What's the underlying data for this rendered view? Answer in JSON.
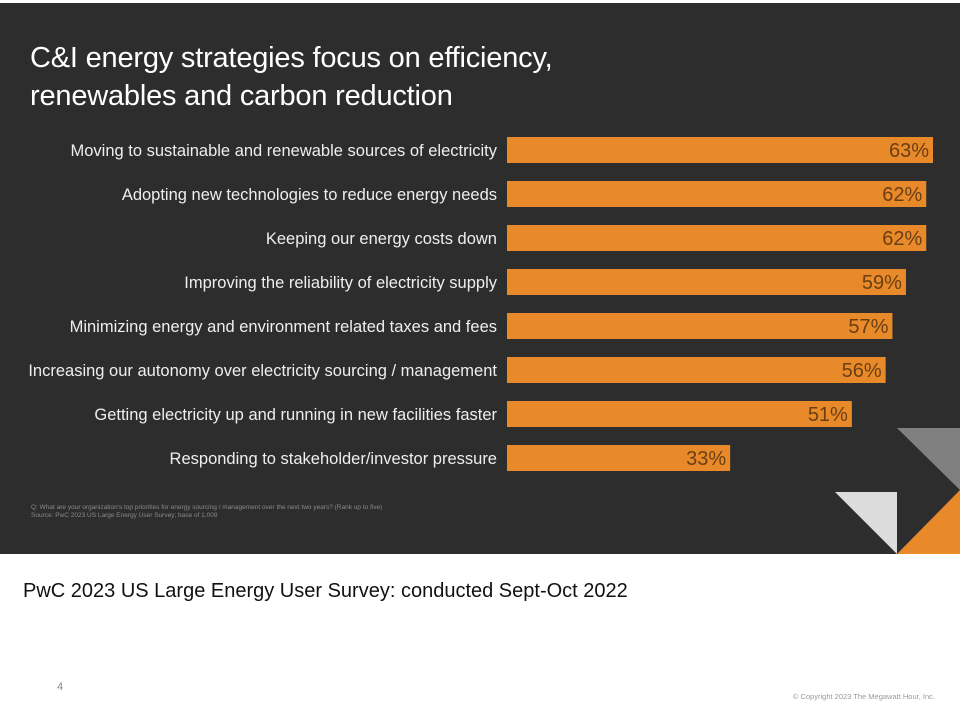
{
  "colors": {
    "panel": "#2d2d2d",
    "bar": "#e8892a",
    "value_text": "#6b3f13",
    "category_text": "#eeeeee",
    "deco_grey": "#808080",
    "deco_light": "#dcdcdc",
    "deco_orange": "#e8892a"
  },
  "slide": {
    "title_line1": "C&I energy strategies focus on efficiency,",
    "title_line2": "renewables and carbon reduction",
    "footnote_q": "Q:  What are your organization's top priorities for energy sourcing / management over the next two years? (Rank up to five)",
    "footnote_source": "Source: PwC 2023 US Large Energy User Survey; base of 1,009",
    "subtitle": "PwC 2023 US Large Energy User Survey: conducted Sept-Oct 2022",
    "page_number": "4",
    "copyright": "© Copyright 2023 The Megawatt Hour, Inc."
  },
  "chart_data": {
    "type": "bar",
    "orientation": "horizontal",
    "title": "C&I energy strategies focus on efficiency, renewables and carbon reduction",
    "xlabel": "",
    "ylabel": "",
    "unit": "%",
    "xlim": [
      0,
      63
    ],
    "grid": false,
    "legend": "none",
    "categories": [
      "Moving to sustainable and renewable sources of electricity",
      "Adopting new technologies to reduce energy needs",
      "Keeping our energy costs down",
      "Improving the reliability of electricity supply",
      "Minimizing energy and environment related taxes and fees",
      "Increasing our autonomy over electricity sourcing / management",
      "Getting electricity up and running in new facilities faster",
      "Responding to stakeholder/investor pressure"
    ],
    "values": [
      63,
      62,
      62,
      59,
      57,
      56,
      51,
      33
    ],
    "value_labels": [
      "63%",
      "62%",
      "62%",
      "59%",
      "57%",
      "56%",
      "51%",
      "33%"
    ]
  }
}
